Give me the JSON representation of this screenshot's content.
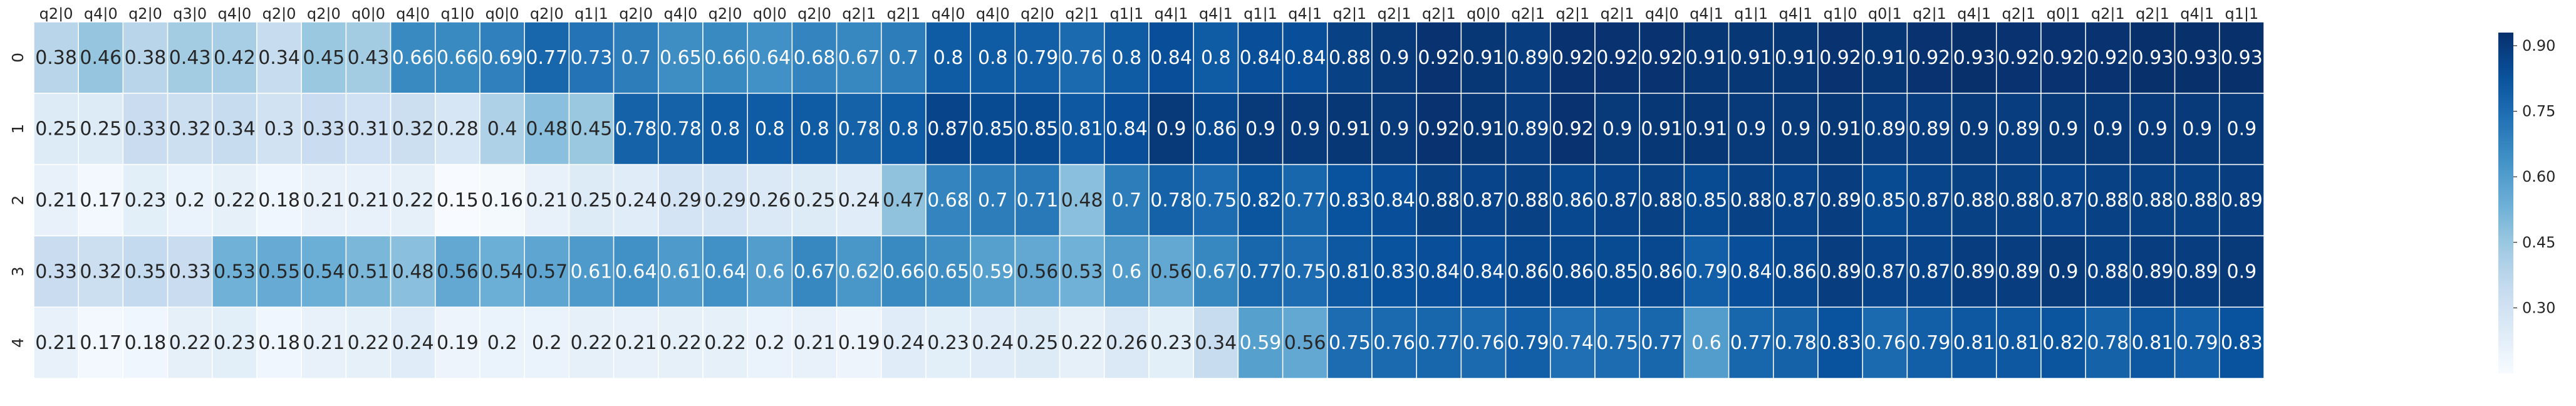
{
  "chart_data": {
    "type": "heatmap",
    "title": "",
    "xlabel": "",
    "ylabel": "",
    "x_tick_labels": [
      "q2|0",
      "q4|0",
      "q2|0",
      "q3|0",
      "q4|0",
      "q2|0",
      "q2|0",
      "q0|0",
      "q4|0",
      "q1|0",
      "q0|0",
      "q2|0",
      "q1|1",
      "q2|0",
      "q4|0",
      "q2|0",
      "q0|0",
      "q2|0",
      "q2|1",
      "q2|1",
      "q4|0",
      "q4|0",
      "q2|0",
      "q2|1",
      "q1|1",
      "q4|1",
      "q4|1",
      "q1|1",
      "q4|1",
      "q2|1",
      "q2|1",
      "q2|1",
      "q0|0",
      "q2|1",
      "q2|1",
      "q2|1",
      "q4|0",
      "q4|1",
      "q1|1",
      "q4|1",
      "q1|0",
      "q0|1",
      "q2|1",
      "q4|1",
      "q2|1",
      "q0|1",
      "q2|1",
      "q2|1",
      "q4|1",
      "q1|1"
    ],
    "y_tick_labels": [
      "0",
      "1",
      "2",
      "3",
      "4"
    ],
    "values": [
      [
        0.38,
        0.46,
        0.38,
        0.43,
        0.42,
        0.34,
        0.45,
        0.43,
        0.66,
        0.66,
        0.69,
        0.77,
        0.73,
        0.7,
        0.65,
        0.66,
        0.64,
        0.68,
        0.67,
        0.7,
        0.8,
        0.8,
        0.79,
        0.76,
        0.8,
        0.84,
        0.8,
        0.84,
        0.84,
        0.88,
        0.9,
        0.92,
        0.91,
        0.89,
        0.92,
        0.92,
        0.92,
        0.91,
        0.91,
        0.91,
        0.92,
        0.91,
        0.92,
        0.93,
        0.92,
        0.92,
        0.92,
        0.93,
        0.93,
        0.93
      ],
      [
        0.25,
        0.25,
        0.33,
        0.32,
        0.34,
        0.3,
        0.33,
        0.31,
        0.32,
        0.28,
        0.4,
        0.48,
        0.45,
        0.78,
        0.78,
        0.8,
        0.8,
        0.8,
        0.78,
        0.8,
        0.87,
        0.85,
        0.85,
        0.81,
        0.84,
        0.9,
        0.86,
        0.9,
        0.9,
        0.91,
        0.9,
        0.92,
        0.91,
        0.89,
        0.92,
        0.9,
        0.91,
        0.91,
        0.9,
        0.9,
        0.91,
        0.89,
        0.89,
        0.9,
        0.89,
        0.9,
        0.9,
        0.9,
        0.9,
        0.9
      ],
      [
        0.21,
        0.17,
        0.23,
        0.2,
        0.22,
        0.18,
        0.21,
        0.21,
        0.22,
        0.15,
        0.16,
        0.21,
        0.25,
        0.24,
        0.29,
        0.29,
        0.26,
        0.25,
        0.24,
        0.47,
        0.68,
        0.7,
        0.71,
        0.48,
        0.7,
        0.78,
        0.75,
        0.82,
        0.77,
        0.83,
        0.84,
        0.88,
        0.87,
        0.88,
        0.86,
        0.87,
        0.88,
        0.85,
        0.88,
        0.87,
        0.89,
        0.85,
        0.87,
        0.88,
        0.88,
        0.87,
        0.88,
        0.88,
        0.88,
        0.89
      ],
      [
        0.33,
        0.32,
        0.35,
        0.33,
        0.53,
        0.55,
        0.54,
        0.51,
        0.48,
        0.56,
        0.54,
        0.57,
        0.61,
        0.64,
        0.61,
        0.64,
        0.6,
        0.67,
        0.62,
        0.66,
        0.65,
        0.59,
        0.56,
        0.53,
        0.6,
        0.56,
        0.67,
        0.77,
        0.75,
        0.81,
        0.83,
        0.84,
        0.84,
        0.86,
        0.86,
        0.85,
        0.86,
        0.79,
        0.84,
        0.86,
        0.89,
        0.87,
        0.87,
        0.89,
        0.89,
        0.9,
        0.88,
        0.89,
        0.89,
        0.9
      ],
      [
        0.21,
        0.17,
        0.18,
        0.22,
        0.23,
        0.18,
        0.21,
        0.22,
        0.24,
        0.19,
        0.2,
        0.2,
        0.22,
        0.21,
        0.22,
        0.22,
        0.2,
        0.21,
        0.19,
        0.24,
        0.23,
        0.24,
        0.25,
        0.22,
        0.26,
        0.23,
        0.34,
        0.59,
        0.56,
        0.75,
        0.76,
        0.77,
        0.76,
        0.79,
        0.74,
        0.75,
        0.77,
        0.6,
        0.77,
        0.78,
        0.83,
        0.76,
        0.79,
        0.81,
        0.81,
        0.82,
        0.78,
        0.81,
        0.79,
        0.83
      ]
    ],
    "value_range": [
      0.15,
      0.93
    ],
    "colormap": "Blues",
    "colorbar_ticks": [
      0.3,
      0.45,
      0.6,
      0.75,
      0.9
    ],
    "colorbar_tick_labels": [
      "0.30",
      "0.45",
      "0.60",
      "0.75",
      "0.90"
    ],
    "annotated": true,
    "cell_border_color": "#ffffff"
  }
}
